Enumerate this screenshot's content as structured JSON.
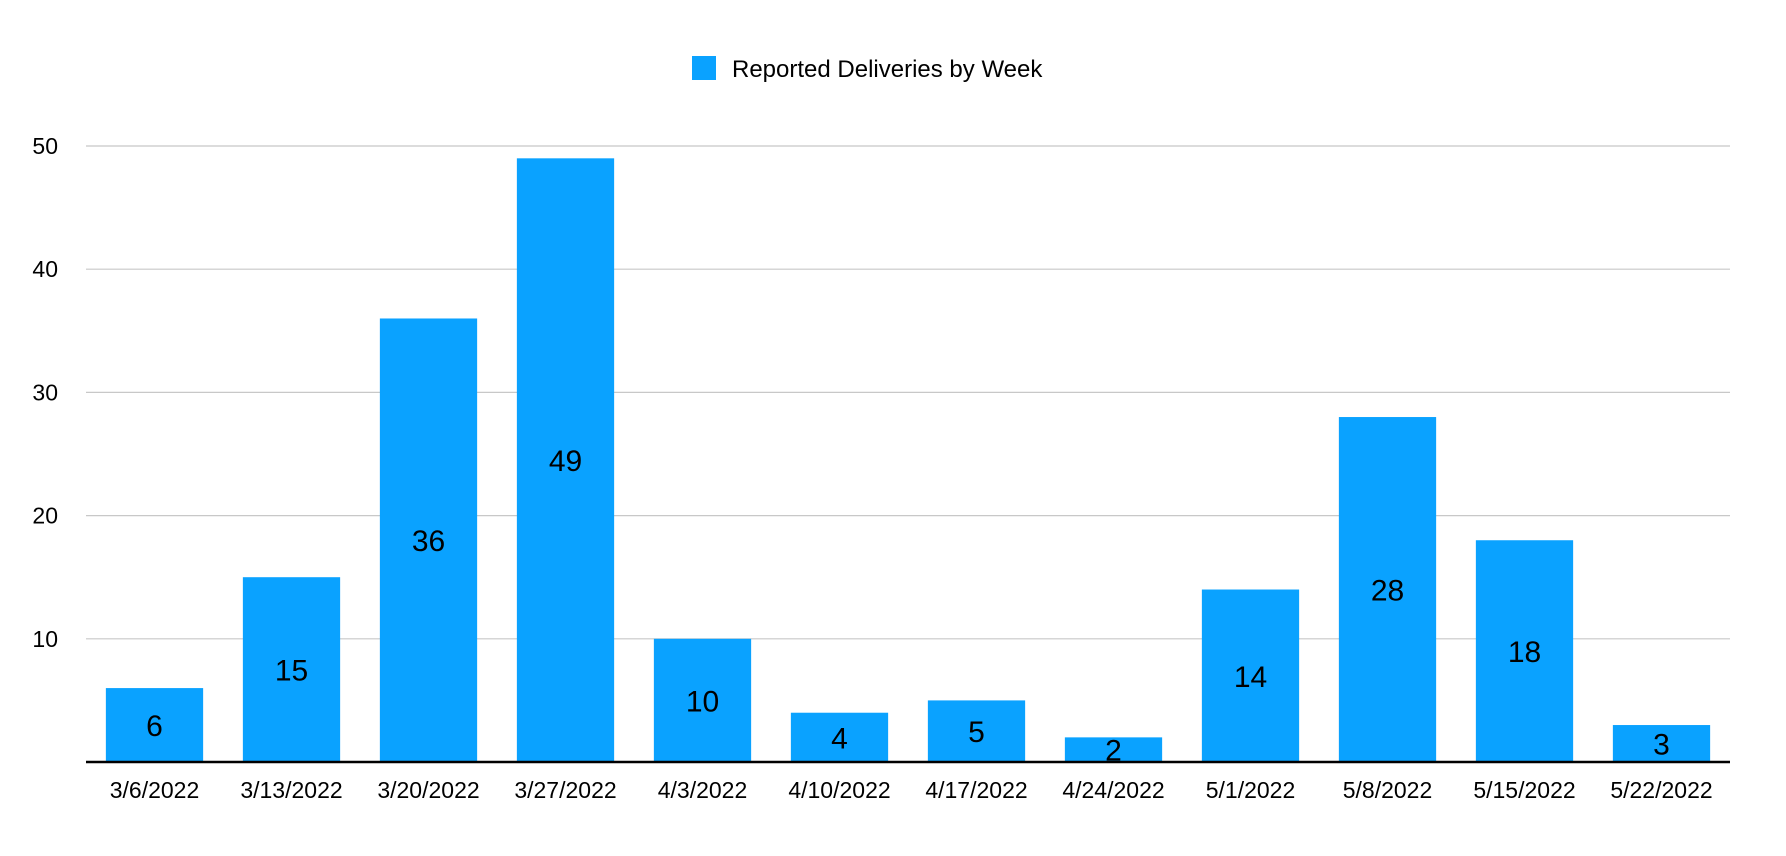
{
  "chart_data": {
    "type": "bar",
    "title": "",
    "xlabel": "",
    "ylabel": "",
    "categories": [
      "3/6/2022",
      "3/13/2022",
      "3/20/2022",
      "3/27/2022",
      "4/3/2022",
      "4/10/2022",
      "4/17/2022",
      "4/24/2022",
      "5/1/2022",
      "5/8/2022",
      "5/15/2022",
      "5/22/2022"
    ],
    "series": [
      {
        "name": "Reported Deliveries by Week",
        "values": [
          6,
          15,
          36,
          49,
          10,
          4,
          5,
          2,
          14,
          28,
          18,
          3
        ],
        "color": "#0aa2ff"
      }
    ],
    "ylim": [
      0,
      50
    ],
    "yticks": [
      10,
      20,
      30,
      40,
      50
    ],
    "grid": true,
    "legend_position": "top-center",
    "data_labels": true
  },
  "colors": {
    "bar": "#0aa2ff",
    "grid": "#c8c8c8",
    "axis": "#000000",
    "text": "#000000"
  }
}
